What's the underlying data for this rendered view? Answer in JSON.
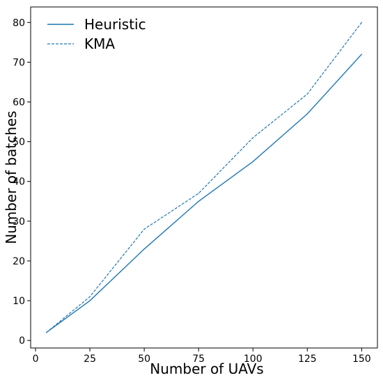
{
  "chart_data": {
    "type": "line",
    "title": "",
    "xlabel": "Number of UAVs",
    "ylabel": "Number of batches",
    "x": [
      5,
      25,
      50,
      75,
      100,
      125,
      150
    ],
    "series": [
      {
        "name": "Heuristic",
        "values": [
          2,
          10,
          23,
          35,
          45,
          57,
          72
        ],
        "style": "solid",
        "color": "#1f77b4"
      },
      {
        "name": "KMA",
        "values": [
          2,
          11,
          28,
          37,
          51,
          62,
          80
        ],
        "style": "dashed",
        "color": "#1f77b4"
      }
    ],
    "xlim": [
      -2.25,
      157.25
    ],
    "ylim": [
      -1.9,
      83.9
    ],
    "xticks": [
      0,
      25,
      50,
      75,
      100,
      125,
      150
    ],
    "yticks": [
      0,
      10,
      20,
      30,
      40,
      50,
      60,
      70,
      80
    ],
    "grid": false,
    "legend_position": "top-left"
  }
}
